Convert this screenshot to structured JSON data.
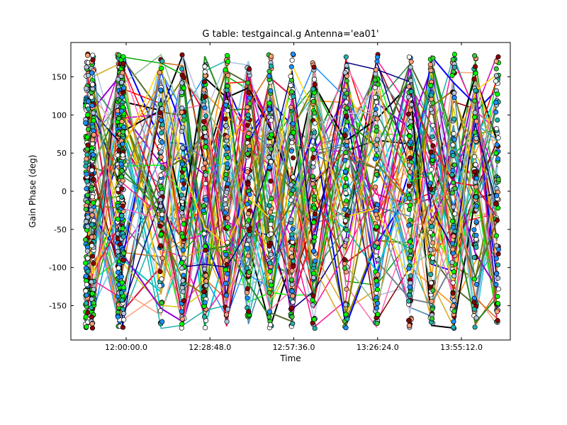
{
  "chart_data": {
    "type": "scatter",
    "title": "G table: testgaincal.g      Antenna='ea01'",
    "xlabel": "Time",
    "ylabel": "Gain Phase (deg)",
    "xlim": [
      "11:41:00",
      "14:12:00"
    ],
    "ylim": [
      -195,
      195
    ],
    "x_ticks": [
      "12:00:00.0",
      "12:28:48.0",
      "12:57:36.0",
      "13:26:24.0",
      "13:55:12.0"
    ],
    "y_ticks": [
      -150,
      -100,
      -50,
      0,
      50,
      100,
      150
    ],
    "grid": false,
    "legend": "none",
    "scan_times": [
      "11:46:30",
      "11:48:30",
      "11:57:30",
      "11:58:45",
      "12:12:00",
      "12:19:30",
      "12:27:00",
      "12:34:30",
      "12:42:00",
      "12:49:30",
      "12:57:00",
      "13:04:30",
      "13:15:30",
      "13:26:00",
      "13:37:30",
      "13:45:00",
      "13:52:30",
      "14:00:00",
      "14:07:30"
    ],
    "phase_range": [
      -180,
      180
    ],
    "series_colors": [
      "#0000ff",
      "#00aa00",
      "#ff0000",
      "#00cccc",
      "#cc00cc",
      "#cccc00",
      "#000000",
      "#8b0000",
      "#00ff00",
      "#87ceeb",
      "#ffa07a",
      "#20b2aa",
      "#9400d3",
      "#ff8c00",
      "#1e90ff",
      "#228b22",
      "#ff1493",
      "#b0c4de",
      "#556b2f",
      "#d2691e",
      "#4682b4",
      "#dc143c",
      "#2e8b57",
      "#daa520",
      "#708090",
      "#ff69b4",
      "#000080",
      "#808000",
      "#ffd700",
      "#8fbc8f"
    ],
    "marker_colors": [
      "#32cd32",
      "#8b0000",
      "#b0c4de",
      "#20b2aa",
      "#ffa07a",
      "#ffffff",
      "#00ff00",
      "#1e90ff"
    ]
  }
}
